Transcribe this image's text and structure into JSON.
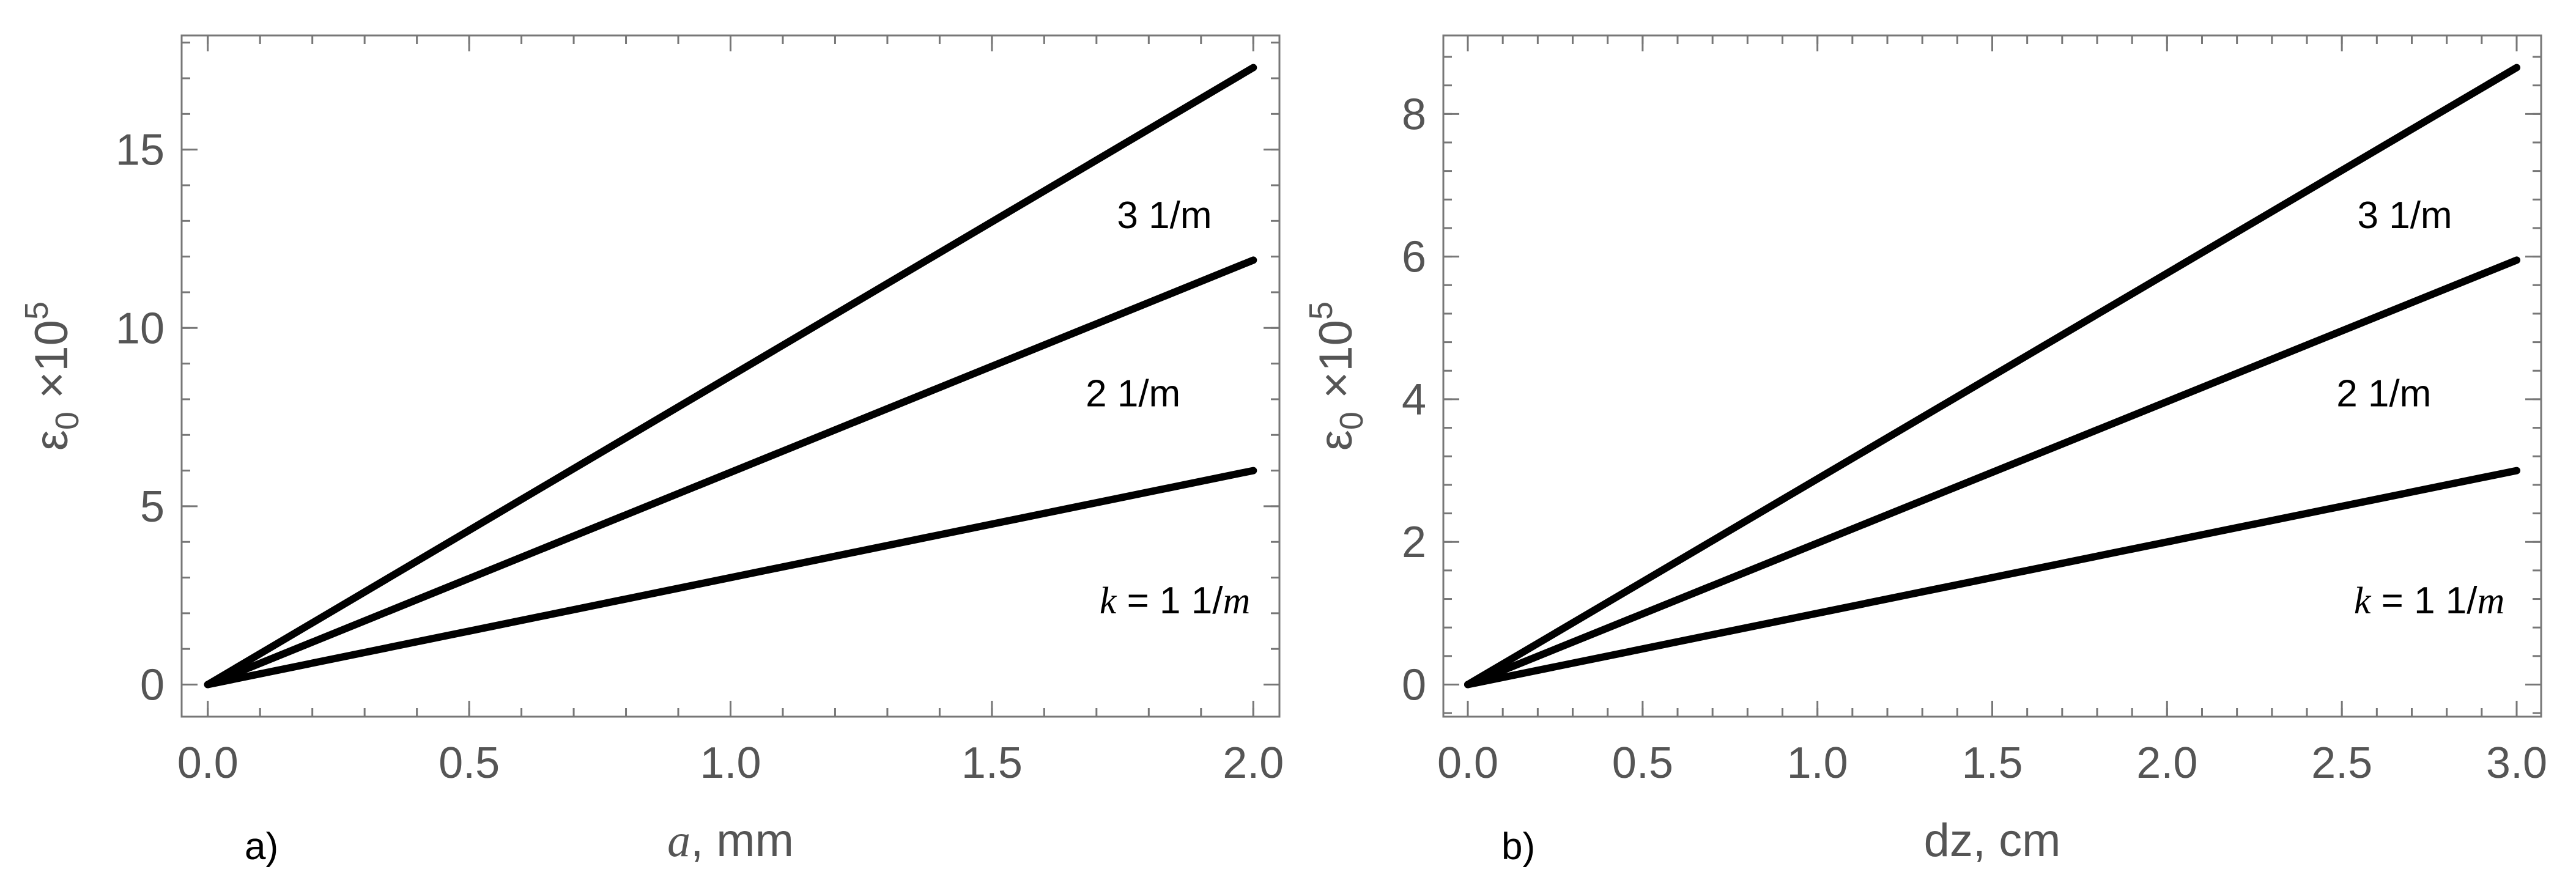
{
  "chart_data": [
    {
      "type": "line",
      "panel_label": "a)",
      "xlabel_var": "a",
      "xlabel_unit": ", mm",
      "ylabel": "ε0 ×10^5",
      "ylabel_parts": {
        "eps": "ε",
        "sub": "0",
        "times": " ×10",
        "sup": "5"
      },
      "xlim": [
        -0.05,
        2.05
      ],
      "ylim": [
        -0.9,
        18.2
      ],
      "xticks": [
        0.0,
        0.5,
        1.0,
        1.5,
        2.0
      ],
      "xtick_labels": [
        "0.0",
        "0.5",
        "1.0",
        "1.5",
        "2.0"
      ],
      "xminor_step": 0.1,
      "yticks": [
        0,
        5,
        10,
        15
      ],
      "ytick_labels": [
        "0",
        "5",
        "10",
        "15"
      ],
      "yminor_step": 1,
      "series": [
        {
          "x": [
            0.0,
            2.0
          ],
          "y": [
            0,
            6.0
          ]
        },
        {
          "x": [
            0.0,
            2.0
          ],
          "y": [
            0,
            11.9
          ]
        },
        {
          "x": [
            0.0,
            2.0
          ],
          "y": [
            0,
            17.3
          ]
        }
      ],
      "annotations": [
        {
          "prefix": "k",
          "eq": " = ",
          "text": "1 1/",
          "unit": "m",
          "x": 1.85,
          "y": 2.0
        },
        {
          "prefix": "",
          "eq": "",
          "text": "2 1/",
          "unit": "m",
          "x": 1.77,
          "y": 7.8
        },
        {
          "prefix": "",
          "eq": "",
          "text": "3 1/",
          "unit": "m",
          "x": 1.83,
          "y": 12.8
        }
      ]
    },
    {
      "type": "line",
      "panel_label": "b)",
      "xlabel_var": "",
      "xlabel_unit": "dz, cm",
      "ylabel": "ε0 ×10^5",
      "ylabel_parts": {
        "eps": "ε",
        "sub": "0",
        "times": " ×10",
        "sup": "5"
      },
      "xlim": [
        -0.07,
        3.07
      ],
      "ylim": [
        -0.45,
        9.1
      ],
      "xticks": [
        0.0,
        0.5,
        1.0,
        1.5,
        2.0,
        2.5,
        3.0
      ],
      "xtick_labels": [
        "0.0",
        "0.5",
        "1.0",
        "1.5",
        "2.0",
        "2.5",
        "3.0"
      ],
      "xminor_step": 0.1,
      "yticks": [
        0,
        2,
        4,
        6,
        8
      ],
      "ytick_labels": [
        "0",
        "2",
        "4",
        "6",
        "8"
      ],
      "yminor_step": 0.4,
      "series": [
        {
          "x": [
            0.0,
            3.0
          ],
          "y": [
            0,
            3.0
          ]
        },
        {
          "x": [
            0.0,
            3.0
          ],
          "y": [
            0,
            5.95
          ]
        },
        {
          "x": [
            0.0,
            3.0
          ],
          "y": [
            0,
            8.65
          ]
        }
      ],
      "annotations": [
        {
          "prefix": "k",
          "eq": " = ",
          "text": "1 1/",
          "unit": "m",
          "x": 2.75,
          "y": 1.0
        },
        {
          "prefix": "",
          "eq": "",
          "text": "2 1/",
          "unit": "m",
          "x": 2.62,
          "y": 3.9
        },
        {
          "prefix": "",
          "eq": "",
          "text": "3 1/",
          "unit": "m",
          "x": 2.68,
          "y": 6.4
        }
      ]
    }
  ]
}
